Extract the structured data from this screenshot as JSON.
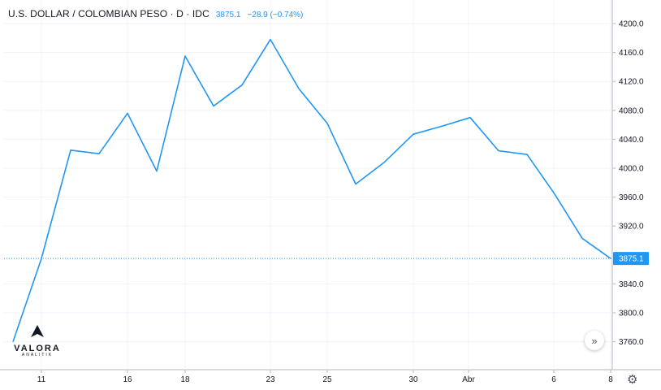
{
  "header": {
    "title": "U.S. DOLLAR / COLOMBIAN PESO · D · IDC",
    "price": "3875.1",
    "change": "−28.9 (−0.74%)"
  },
  "logo": {
    "name": "VALORA",
    "sub": "ANALITIK"
  },
  "controls": {
    "scroll_right_icon": "double-chevron-right-icon",
    "settings_icon": "gear-icon"
  },
  "colors": {
    "line": "#2196f3",
    "grid": "#f0f3fa",
    "axis_text": "#131722",
    "price_label_bg": "#2196f3"
  },
  "chart_data": {
    "type": "line",
    "x_tick_labels": [
      "11",
      "16",
      "18",
      "23",
      "25",
      "30",
      "Abr",
      "6",
      "8"
    ],
    "y_tick_labels": [
      "4200.0",
      "4160.0",
      "4120.0",
      "4080.0",
      "4040.0",
      "4000.0",
      "3960.0",
      "3920.0",
      "3840.0",
      "3800.0",
      "3760.0"
    ],
    "ylim": [
      3720,
      4220
    ],
    "last_value_label": "3875.1",
    "series": [
      {
        "values": [
          3760,
          3875,
          4025,
          4020,
          4076,
          3996,
          4155,
          4086,
          4115,
          4178,
          4110,
          4062,
          3978,
          4008,
          4047,
          4058,
          4070,
          4024,
          4019,
          3966,
          3903,
          3875.1
        ]
      }
    ],
    "grid": true
  }
}
